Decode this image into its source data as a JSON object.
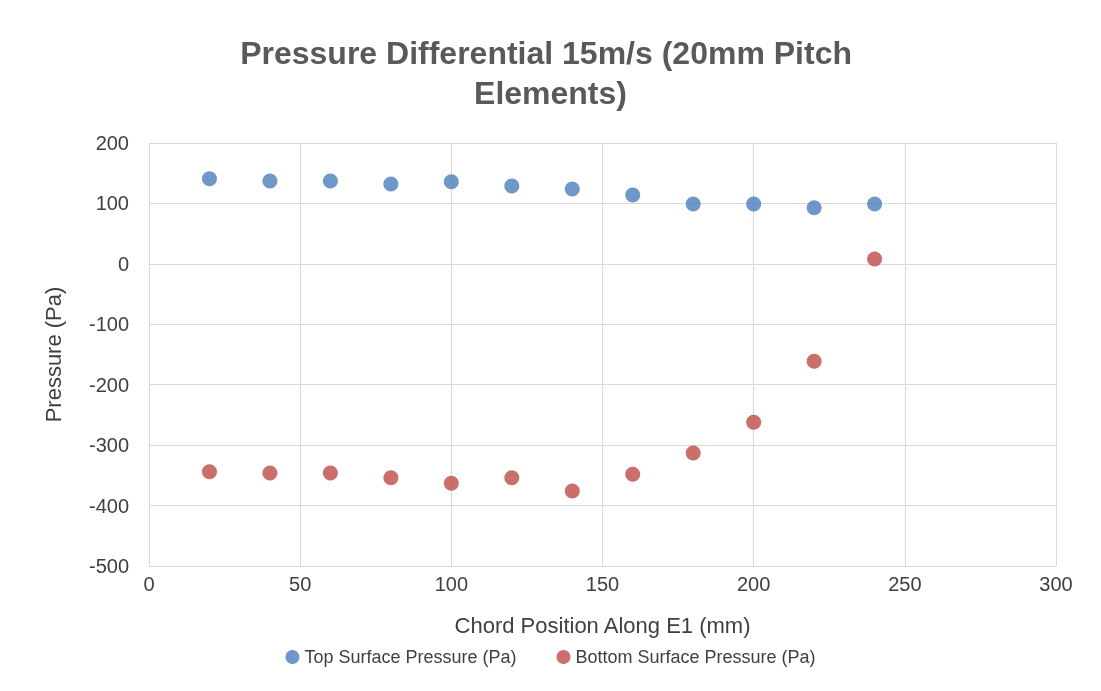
{
  "chart_data": {
    "type": "scatter",
    "title": "Pressure Differential 15m/s (20mm Pitch Elements)",
    "xlabel": "Chord Position Along E1 (mm)",
    "ylabel": "Pressure (Pa)",
    "x": [
      20,
      40,
      60,
      80,
      100,
      120,
      140,
      160,
      180,
      200,
      220,
      240
    ],
    "series": [
      {
        "name": "Top Surface Pressure (Pa)",
        "color": "#4a7ebb",
        "values": [
          141,
          137,
          137,
          132,
          136,
          129,
          124,
          114,
          99,
          99,
          93,
          99
        ]
      },
      {
        "name": "Bottom Surface Pressure (Pa)",
        "color": "#be4b48",
        "values": [
          -344,
          -346,
          -346,
          -354,
          -363,
          -354,
          -376,
          -348,
          -313,
          -262,
          -161,
          8
        ]
      }
    ],
    "xlim": [
      0,
      300
    ],
    "xticks": [
      0,
      50,
      100,
      150,
      200,
      250,
      300
    ],
    "ylim": [
      -500,
      200
    ],
    "yticks": [
      -500,
      -400,
      -300,
      -200,
      -100,
      0,
      100,
      200
    ],
    "grid": true,
    "legend": "bottom",
    "marker": "circle"
  }
}
